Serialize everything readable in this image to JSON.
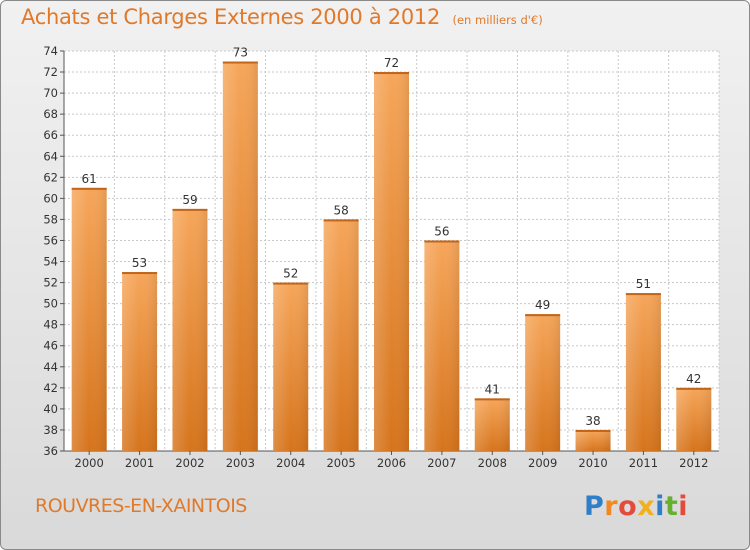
{
  "title": "Achats et Charges Externes 2000 à 2012",
  "subtitle": "(en milliers d'€)",
  "commune": "ROUVRES-EN-XAINTOIS",
  "logo": {
    "text": "Proxiti",
    "letters": [
      {
        "ch": "P",
        "color": "#2f7fc8"
      },
      {
        "ch": "r",
        "color": "#f08a20"
      },
      {
        "ch": "o",
        "color": "#e34b3a"
      },
      {
        "ch": "x",
        "color": "#f0b020"
      },
      {
        "ch": "i",
        "color": "#2f7fc8"
      },
      {
        "ch": "t",
        "color": "#66b030"
      },
      {
        "ch": "i",
        "color": "#e34b3a"
      }
    ]
  },
  "colors": {
    "title": "#e0792a",
    "bar_light": "#f6a65a",
    "bar_dark": "#d6741c",
    "grid": "#c8c8c8",
    "axis_text": "#333333"
  },
  "chart_data": {
    "type": "bar",
    "title": "Achats et Charges Externes 2000 à 2012",
    "subtitle": "(en milliers d'€)",
    "categories": [
      "2000",
      "2001",
      "2002",
      "2003",
      "2004",
      "2005",
      "2006",
      "2007",
      "2008",
      "2009",
      "2010",
      "2011",
      "2012"
    ],
    "values": [
      61,
      53,
      59,
      73,
      52,
      58,
      72,
      56,
      41,
      49,
      38,
      51,
      42
    ],
    "ylim": [
      36,
      74
    ],
    "yticks": [
      36,
      38,
      40,
      42,
      44,
      46,
      48,
      50,
      52,
      54,
      56,
      58,
      60,
      62,
      64,
      66,
      68,
      70,
      72,
      74
    ],
    "grid": true,
    "xlabel": "",
    "ylabel": ""
  }
}
